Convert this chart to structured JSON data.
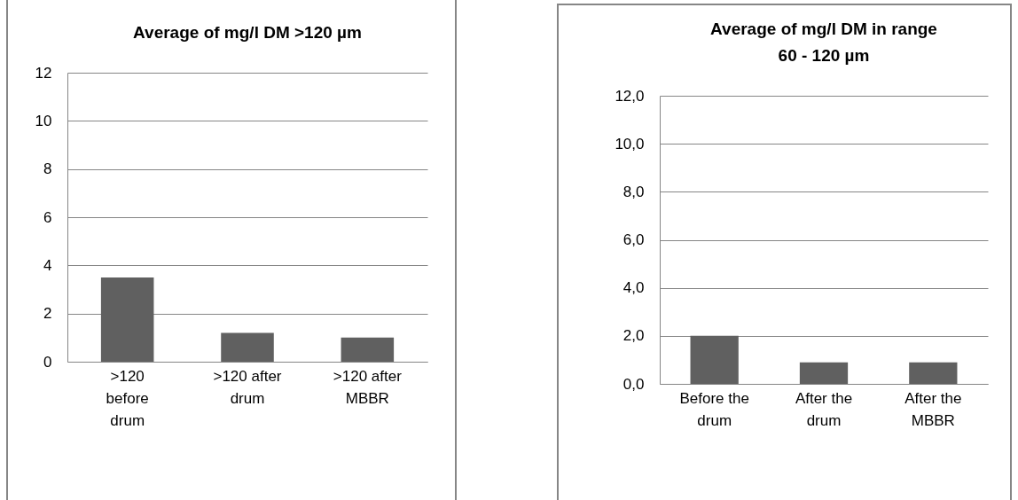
{
  "chart_data": [
    {
      "type": "bar",
      "title": "Average of mg/l DM >120 µm",
      "categories": [
        ">120 before drum",
        ">120 after drum",
        ">120 after MBBR"
      ],
      "values": [
        3.5,
        1.2,
        1.0
      ],
      "color": "#606060",
      "ylim": [
        0,
        12
      ],
      "yticks": [
        0,
        2,
        4,
        6,
        8,
        10,
        12
      ],
      "grid": "y"
    },
    {
      "type": "bar",
      "title": "Average of mg/l DM in range 60 - 120 µm",
      "categories": [
        "Before the drum",
        "After the drum",
        "After the MBBR"
      ],
      "values": [
        2.0,
        0.9,
        0.9
      ],
      "color": "#606060",
      "ylim": [
        0,
        12
      ],
      "yticks": [
        {
          "value": 0,
          "label": "0,0"
        },
        {
          "value": 2,
          "label": "2,0"
        },
        {
          "value": 4,
          "label": "4,0"
        },
        {
          "value": 6,
          "label": "6,0"
        },
        {
          "value": 8,
          "label": "8,0"
        },
        {
          "value": 10,
          "label": "10,0"
        },
        {
          "value": 12,
          "label": "12,0"
        }
      ],
      "grid": "y"
    }
  ]
}
